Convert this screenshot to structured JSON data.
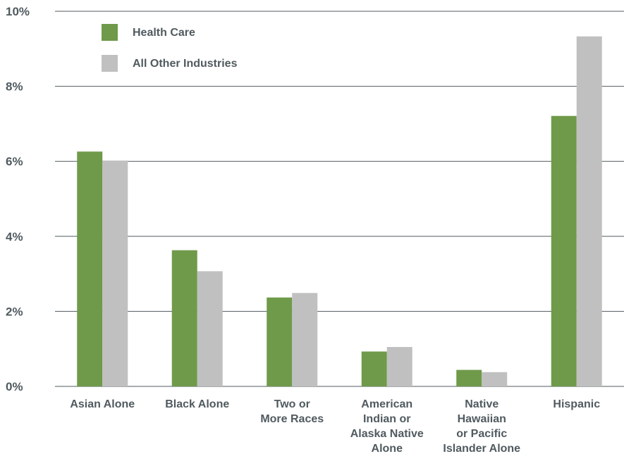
{
  "chart_data": {
    "type": "bar",
    "categories": [
      [
        "Asian Alone"
      ],
      [
        "Black Alone"
      ],
      [
        "Two or",
        "More Races"
      ],
      [
        "American",
        "Indian or",
        "Alaska Native",
        "Alone"
      ],
      [
        "Native",
        "Hawaiian",
        "or Pacific",
        "Islander Alone"
      ],
      [
        "Hispanic"
      ]
    ],
    "series": [
      {
        "name": "Health Care",
        "color": "#6f9a4a",
        "values": [
          6.26,
          3.63,
          2.37,
          0.93,
          0.44,
          7.21
        ]
      },
      {
        "name": "All Other Industries",
        "color": "#c0c0c0",
        "values": [
          6.02,
          3.07,
          2.49,
          1.05,
          0.38,
          9.33
        ]
      }
    ],
    "yticks": [
      "0%",
      "2%",
      "4%",
      "6%",
      "8%",
      "10%"
    ],
    "ylim": [
      0,
      10
    ],
    "grid": true,
    "legend_position": "top-left"
  }
}
